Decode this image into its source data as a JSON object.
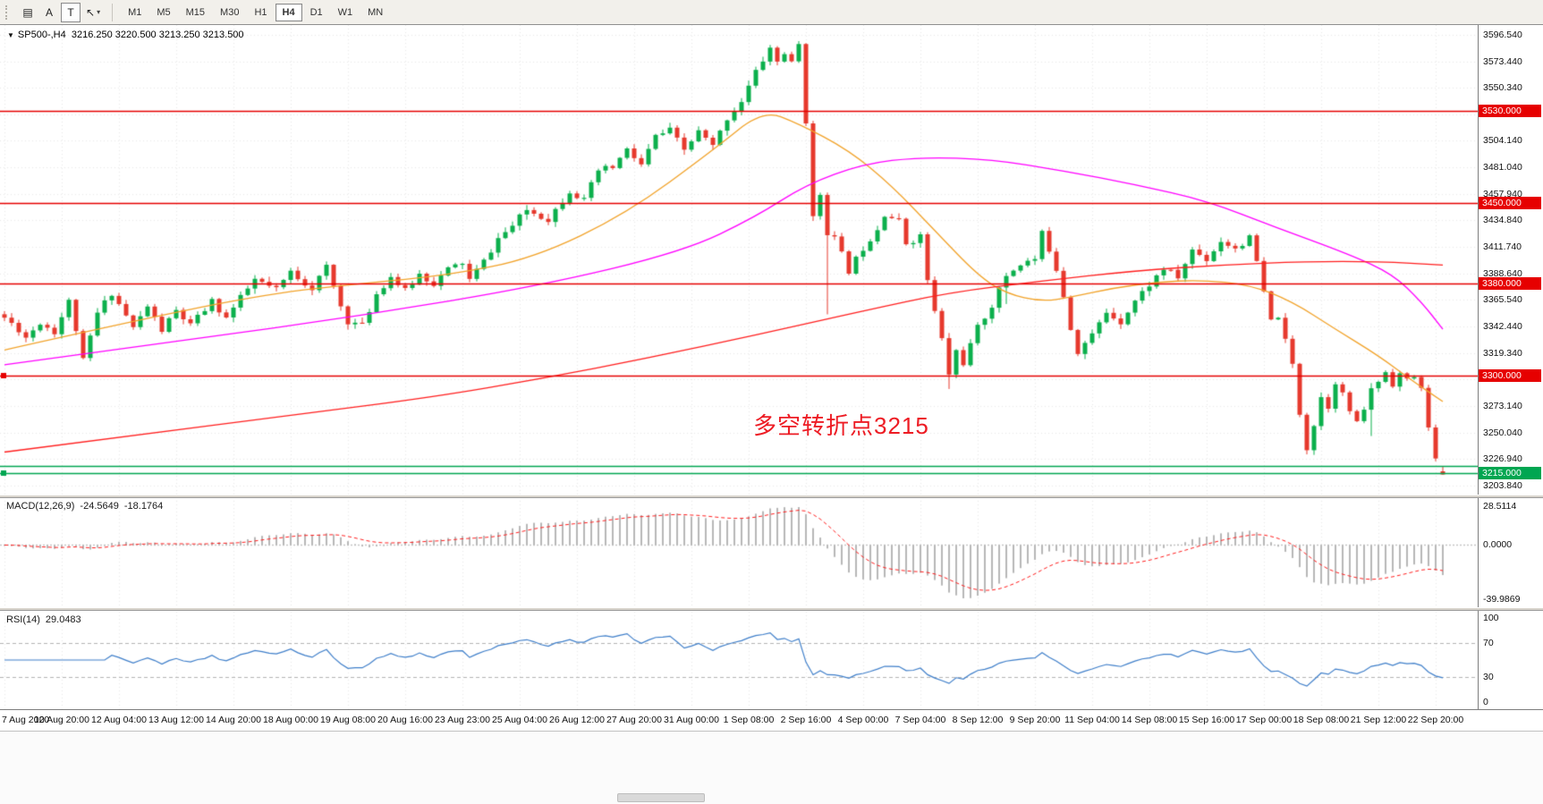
{
  "toolbar": {
    "tools": [
      {
        "id": "grid",
        "glyph": "▤",
        "boxed": false
      },
      {
        "id": "text",
        "glyph": "A",
        "boxed": false
      },
      {
        "id": "text-label",
        "glyph": "T",
        "boxed": true
      },
      {
        "id": "arrows",
        "glyph": "↖",
        "caret": "▾",
        "boxed": false
      }
    ],
    "timeframes": [
      "M1",
      "M5",
      "M15",
      "M30",
      "H1",
      "H4",
      "D1",
      "W1",
      "MN"
    ],
    "active_timeframe": "H4"
  },
  "chart": {
    "symbol_line": {
      "expander": "▼",
      "title": "SP500-,H4",
      "ohlc": "3216.250 3220.500 3213.250 3213.500"
    },
    "annotation": {
      "text": "多空转折点3215",
      "color": "#ed1c24"
    }
  },
  "chart_data": {
    "type": "candlestick",
    "symbol": "SP500-",
    "period": "H4",
    "last_ohlc": {
      "open": 3216.25,
      "high": 3220.5,
      "low": 3213.25,
      "close": 3213.5
    },
    "candle_count": 202,
    "candles_per_label": 8,
    "seed": 11,
    "noise": 3.1,
    "up_color": "#0bb04c",
    "down_color": "#e6392d",
    "price_axis": {
      "max": 3605,
      "min": 3196,
      "ticks": [
        "3596.540",
        "3573.440",
        "3550.340",
        "3527.240",
        "3504.140",
        "3481.040",
        "3457.940",
        "3434.840",
        "3411.740",
        "3388.640",
        "3365.540",
        "3342.440",
        "3319.340",
        "3296.240",
        "3273.140",
        "3250.040",
        "3226.940",
        "3203.840"
      ]
    },
    "time_axis_labels": [
      "7 Aug 2020",
      "10 Aug 20:00",
      "12 Aug 04:00",
      "13 Aug 12:00",
      "14 Aug 20:00",
      "18 Aug 00:00",
      "19 Aug 08:00",
      "20 Aug 16:00",
      "23 Aug 23:00",
      "25 Aug 04:00",
      "26 Aug 12:00",
      "27 Aug 20:00",
      "31 Aug 00:00",
      "1 Sep 08:00",
      "2 Sep 16:00",
      "4 Sep 00:00",
      "7 Sep 04:00",
      "8 Sep 12:00",
      "9 Sep 20:00",
      "11 Sep 04:00",
      "14 Sep 08:00",
      "15 Sep 16:00",
      "17 Sep 00:00",
      "18 Sep 08:00",
      "21 Sep 12:00",
      "22 Sep 20:00"
    ],
    "price_waypoints": [
      [
        0,
        3350
      ],
      [
        2,
        3340
      ],
      [
        3,
        3333
      ],
      [
        5,
        3346
      ],
      [
        7,
        3338
      ],
      [
        9,
        3364
      ],
      [
        10,
        3340
      ],
      [
        11,
        3312
      ],
      [
        13,
        3354
      ],
      [
        15,
        3372
      ],
      [
        17,
        3352
      ],
      [
        18,
        3341
      ],
      [
        20,
        3360
      ],
      [
        22,
        3339
      ],
      [
        24,
        3356
      ],
      [
        26,
        3343
      ],
      [
        29,
        3364
      ],
      [
        31,
        3350
      ],
      [
        33,
        3367
      ],
      [
        35,
        3383
      ],
      [
        38,
        3374
      ],
      [
        40,
        3390
      ],
      [
        43,
        3376
      ],
      [
        45,
        3394
      ],
      [
        47,
        3360
      ],
      [
        48,
        3347
      ],
      [
        50,
        3343
      ],
      [
        52,
        3371
      ],
      [
        54,
        3386
      ],
      [
        56,
        3373
      ],
      [
        58,
        3388
      ],
      [
        60,
        3380
      ],
      [
        62,
        3392
      ],
      [
        64,
        3398
      ],
      [
        65,
        3383
      ],
      [
        67,
        3399
      ],
      [
        69,
        3419
      ],
      [
        71,
        3430
      ],
      [
        73,
        3444
      ],
      [
        76,
        3436
      ],
      [
        79,
        3461
      ],
      [
        81,
        3452
      ],
      [
        83,
        3478
      ],
      [
        85,
        3481
      ],
      [
        87,
        3496
      ],
      [
        89,
        3483
      ],
      [
        91,
        3508
      ],
      [
        93,
        3513
      ],
      [
        95,
        3496
      ],
      [
        97,
        3512
      ],
      [
        99,
        3499
      ],
      [
        101,
        3524
      ],
      [
        103,
        3539
      ],
      [
        105,
        3564
      ],
      [
        107,
        3585
      ],
      [
        108,
        3573
      ],
      [
        109,
        3581
      ],
      [
        110,
        3571
      ],
      [
        111,
        3588
      ],
      [
        112,
        3522
      ],
      [
        113,
        3436
      ],
      [
        114,
        3458
      ],
      [
        115,
        3425
      ],
      [
        116,
        3419
      ],
      [
        118,
        3391
      ],
      [
        120,
        3411
      ],
      [
        122,
        3428
      ],
      [
        123,
        3441
      ],
      [
        125,
        3434
      ],
      [
        126,
        3415
      ],
      [
        128,
        3421
      ],
      [
        129,
        3383
      ],
      [
        130,
        3355
      ],
      [
        131,
        3331
      ],
      [
        132,
        3301
      ],
      [
        133,
        3321
      ],
      [
        134,
        3311
      ],
      [
        136,
        3341
      ],
      [
        138,
        3361
      ],
      [
        140,
        3387
      ],
      [
        142,
        3397
      ],
      [
        144,
        3401
      ],
      [
        145,
        3423
      ],
      [
        146,
        3410
      ],
      [
        147,
        3393
      ],
      [
        148,
        3370
      ],
      [
        149,
        3341
      ],
      [
        150,
        3321
      ],
      [
        152,
        3335
      ],
      [
        154,
        3355
      ],
      [
        156,
        3347
      ],
      [
        158,
        3365
      ],
      [
        160,
        3379
      ],
      [
        162,
        3393
      ],
      [
        164,
        3385
      ],
      [
        166,
        3409
      ],
      [
        168,
        3401
      ],
      [
        170,
        3417
      ],
      [
        172,
        3411
      ],
      [
        174,
        3419
      ],
      [
        175,
        3399
      ],
      [
        176,
        3371
      ],
      [
        177,
        3347
      ],
      [
        178,
        3352
      ],
      [
        179,
        3329
      ],
      [
        180,
        3309
      ],
      [
        181,
        3267
      ],
      [
        182,
        3237
      ],
      [
        183,
        3257
      ],
      [
        184,
        3281
      ],
      [
        185,
        3273
      ],
      [
        186,
        3295
      ],
      [
        187,
        3283
      ],
      [
        188,
        3269
      ],
      [
        189,
        3257
      ],
      [
        190,
        3271
      ],
      [
        191,
        3287
      ],
      [
        192,
        3295
      ],
      [
        193,
        3303
      ],
      [
        194,
        3293
      ],
      [
        195,
        3301
      ],
      [
        196,
        3295
      ],
      [
        197,
        3299
      ],
      [
        198,
        3287
      ],
      [
        199,
        3257
      ],
      [
        200,
        3226
      ],
      [
        201,
        3213.5
      ]
    ],
    "wick_marks": [
      {
        "i": 111,
        "high": 3591
      },
      {
        "i": 115,
        "low": 3353
      },
      {
        "i": 132,
        "low": 3288
      },
      {
        "i": 140,
        "low": 3362
      },
      {
        "i": 182,
        "low": 3231
      },
      {
        "i": 191,
        "low": 3247
      }
    ],
    "moving_averages": [
      {
        "name": "ma-fast-orange",
        "color": "#f2a32a",
        "waypoints": [
          [
            0,
            3322
          ],
          [
            20,
            3350
          ],
          [
            37,
            3371
          ],
          [
            50,
            3380
          ],
          [
            62,
            3387
          ],
          [
            74,
            3402
          ],
          [
            87,
            3441
          ],
          [
            99,
            3496
          ],
          [
            106,
            3531
          ],
          [
            111,
            3519
          ],
          [
            118,
            3496
          ],
          [
            124,
            3465
          ],
          [
            130,
            3426
          ],
          [
            136,
            3387
          ],
          [
            140,
            3371
          ],
          [
            145,
            3364
          ],
          [
            149,
            3368
          ],
          [
            155,
            3376
          ],
          [
            161,
            3381
          ],
          [
            167,
            3383
          ],
          [
            174,
            3379
          ],
          [
            180,
            3364
          ],
          [
            186,
            3340
          ],
          [
            192,
            3317
          ],
          [
            197,
            3294
          ],
          [
            201,
            3277
          ]
        ]
      },
      {
        "name": "ma-mid-magenta",
        "color": "#ff00ff",
        "waypoints": [
          [
            0,
            3309
          ],
          [
            25,
            3330
          ],
          [
            50,
            3352
          ],
          [
            75,
            3378
          ],
          [
            95,
            3408
          ],
          [
            105,
            3438
          ],
          [
            112,
            3466
          ],
          [
            120,
            3484
          ],
          [
            128,
            3490
          ],
          [
            138,
            3488
          ],
          [
            148,
            3478
          ],
          [
            158,
            3466
          ],
          [
            168,
            3452
          ],
          [
            178,
            3428
          ],
          [
            188,
            3405
          ],
          [
            194,
            3388
          ],
          [
            198,
            3364
          ],
          [
            201,
            3340
          ]
        ]
      },
      {
        "name": "ma-slow-red",
        "color": "#ff1f1f",
        "waypoints": [
          [
            0,
            3233
          ],
          [
            20,
            3249
          ],
          [
            40,
            3265
          ],
          [
            60,
            3281
          ],
          [
            75,
            3297
          ],
          [
            90,
            3315
          ],
          [
            105,
            3335
          ],
          [
            120,
            3356
          ],
          [
            132,
            3372
          ],
          [
            145,
            3382
          ],
          [
            158,
            3391
          ],
          [
            170,
            3396
          ],
          [
            182,
            3399
          ],
          [
            192,
            3399
          ],
          [
            201,
            3396
          ]
        ]
      }
    ],
    "levels": [
      {
        "price": 3530,
        "label": "3530.000",
        "color": "#e60000",
        "badge": true,
        "handle": false
      },
      {
        "price": 3450,
        "label": "3450.000",
        "color": "#e60000",
        "badge": true,
        "handle": false
      },
      {
        "price": 3380,
        "label": "3380.000",
        "color": "#e60000",
        "badge": true,
        "handle": false
      },
      {
        "price": 3300,
        "label": "3300.000",
        "color": "#e60000",
        "badge": true,
        "handle": true
      },
      {
        "price": 3221,
        "label": "",
        "color": "#00a651",
        "badge": false,
        "handle": false
      },
      {
        "price": 3215,
        "label": "3215.000",
        "color": "#00a651",
        "badge": true,
        "handle": true
      }
    ],
    "macd": {
      "label": "MACD(12,26,9)",
      "value_main": "-24.5649",
      "value_signal": "-18.1764",
      "fast": 12,
      "slow": 26,
      "signal": 9,
      "axis_max": 28.5114,
      "axis_min": -39.9869,
      "axis_labels": [
        "28.5114",
        "0.0000",
        "-39.9869"
      ],
      "hist_color": "#b8b8b8",
      "signal_color": "#ff2020"
    },
    "rsi": {
      "label": "RSI(14)",
      "value": "29.0483",
      "period": 14,
      "line_color": "#3f7fca",
      "levels": [
        70,
        30
      ],
      "axis_labels": [
        "100",
        "70",
        "30",
        "0"
      ]
    }
  }
}
